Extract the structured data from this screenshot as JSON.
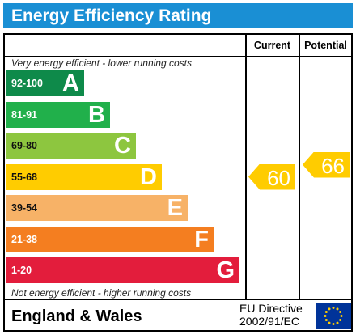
{
  "title": "Energy Efficiency Rating",
  "columns": {
    "current": "Current",
    "potential": "Potential"
  },
  "top_note": "Very energy efficient - lower running costs",
  "bottom_note": "Not energy efficient - higher running costs",
  "bands": [
    {
      "range": "92-100",
      "letter": "A",
      "color": "#0e8a4a"
    },
    {
      "range": "81-91",
      "letter": "B",
      "color": "#21b04b"
    },
    {
      "range": "69-80",
      "letter": "C",
      "color": "#8dc63f"
    },
    {
      "range": "55-68",
      "letter": "D",
      "color": "#ffcc00"
    },
    {
      "range": "39-54",
      "letter": "E",
      "color": "#f7b267"
    },
    {
      "range": "21-38",
      "letter": "F",
      "color": "#f47e20"
    },
    {
      "range": "1-20",
      "letter": "G",
      "color": "#e31d3c"
    }
  ],
  "current_rating": {
    "value": "60",
    "band": "D",
    "color": "#ffcc00"
  },
  "potential_rating": {
    "value": "66",
    "band": "D",
    "color": "#ffcc00"
  },
  "footer": {
    "country": "England & Wales",
    "directive_line1": "EU Directive",
    "directive_line2": "2002/91/EC"
  },
  "eu_flag_icon": "eu-flag-icon",
  "accent_color": "#1a8fd4"
}
